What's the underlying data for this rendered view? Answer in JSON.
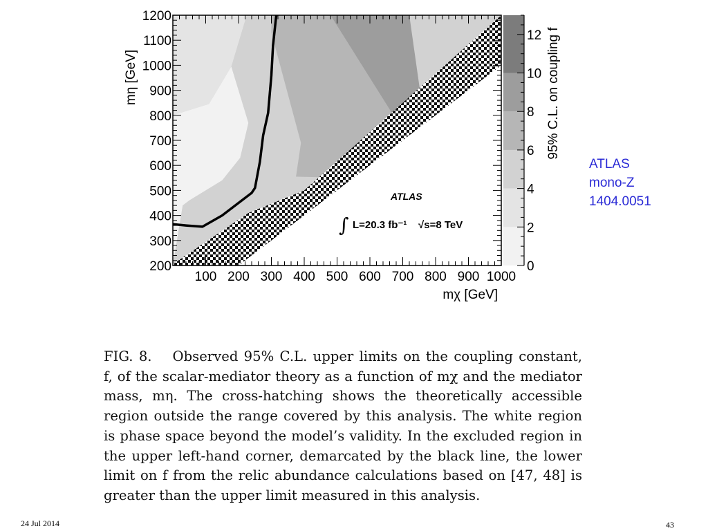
{
  "chart_data": {
    "type": "heatmap",
    "xlabel": "mχ [GeV]",
    "ylabel": "mη [GeV]",
    "xlim": [
      0,
      1000
    ],
    "ylim": [
      200,
      1200
    ],
    "x_ticks": [
      100,
      200,
      300,
      400,
      500,
      600,
      700,
      800,
      900,
      1000
    ],
    "y_ticks": [
      200,
      300,
      400,
      500,
      600,
      700,
      800,
      900,
      1000,
      1100,
      1200
    ],
    "colorbar": {
      "label": "95% C.L. on coupling f",
      "range": [
        0,
        13
      ],
      "ticks": [
        0,
        2,
        4,
        6,
        8,
        10,
        12
      ],
      "levels": [
        {
          "from": 0,
          "to": 2,
          "color": "#f2f2f2"
        },
        {
          "from": 2,
          "to": 4,
          "color": "#e4e4e4"
        },
        {
          "from": 4,
          "to": 6,
          "color": "#d2d2d2"
        },
        {
          "from": 6,
          "to": 8,
          "color": "#b6b6b6"
        },
        {
          "from": 8,
          "to": 10,
          "color": "#9d9d9d"
        },
        {
          "from": 10,
          "to": 13,
          "color": "#7c7c7c"
        }
      ]
    },
    "regions": [
      {
        "level": 1,
        "polygon": [
          [
            0,
            200
          ],
          [
            0,
            1200
          ],
          [
            225,
            1200
          ],
          [
            178,
            995
          ],
          [
            110,
            845
          ],
          [
            0,
            800
          ]
        ]
      },
      {
        "level": 0,
        "polygon": [
          [
            0,
            200
          ],
          [
            0,
            800
          ],
          [
            110,
            845
          ],
          [
            178,
            995
          ],
          [
            230,
            770
          ],
          [
            205,
            630
          ],
          [
            150,
            540
          ],
          [
            50,
            460
          ],
          [
            30,
            440
          ]
        ]
      },
      {
        "level": 2,
        "polygon": [
          [
            225,
            1200
          ],
          [
            178,
            995
          ],
          [
            230,
            770
          ],
          [
            205,
            630
          ],
          [
            150,
            540
          ],
          [
            50,
            460
          ],
          [
            30,
            440
          ],
          [
            0,
            200
          ],
          [
            260,
            200
          ],
          [
            545,
            550
          ],
          [
            375,
            555
          ],
          [
            390,
            690
          ],
          [
            300,
            1130
          ],
          [
            300,
            1200
          ]
        ]
      },
      {
        "level": 3,
        "polygon": [
          [
            300,
            1200
          ],
          [
            300,
            1130
          ],
          [
            390,
            690
          ],
          [
            375,
            555
          ],
          [
            545,
            550
          ],
          [
            700,
            740
          ],
          [
            480,
            1200
          ]
        ]
      },
      {
        "level": 4,
        "polygon": [
          [
            480,
            1200
          ],
          [
            700,
            740
          ],
          [
            762,
            810
          ],
          [
            720,
            1200
          ]
        ]
      }
    ],
    "hatched_band": {
      "lower_edge": [
        [
          0,
          200
        ],
        [
          200,
          200
        ],
        [
          1000,
          1000
        ]
      ],
      "upper_edge": [
        [
          0,
          205
        ],
        [
          230,
          410
        ],
        [
          400,
          500
        ],
        [
          1000,
          1200
        ]
      ],
      "label": "theoretically accessible region outside the range covered by this analysis"
    },
    "exclusion_line": [
      [
        0,
        365
      ],
      [
        40,
        360
      ],
      [
        90,
        355
      ],
      [
        150,
        400
      ],
      [
        200,
        450
      ],
      [
        240,
        490
      ],
      [
        250,
        510
      ],
      [
        265,
        615
      ],
      [
        275,
        720
      ],
      [
        290,
        810
      ],
      [
        300,
        960
      ],
      [
        305,
        1080
      ],
      [
        315,
        1200
      ]
    ],
    "annotations": {
      "experiment": "ATLAS",
      "luminosity": "L=20.3 fb⁻¹",
      "energy": "√s=8 TeV"
    }
  },
  "side_label": {
    "line1": "ATLAS",
    "line2": "mono-Z",
    "line3": "1404.0051"
  },
  "caption": {
    "label": "FIG. 8.",
    "text": "Observed 95% C.L. upper limits on the coupling constant, f, of the scalar-mediator theory as a function of mχ and the mediator mass, mη. The cross-hatching shows the theoretically accessible region outside the range covered by this analysis. The white region is phase space beyond the model’s validity. In the excluded region in the upper left-hand corner, demarcated by the black line, the lower limit on f from the relic abundance calculations based on [47, 48] is greater than the upper limit measured in this analysis."
  },
  "footer": {
    "date": "24 Jul 2014",
    "page": "43"
  }
}
